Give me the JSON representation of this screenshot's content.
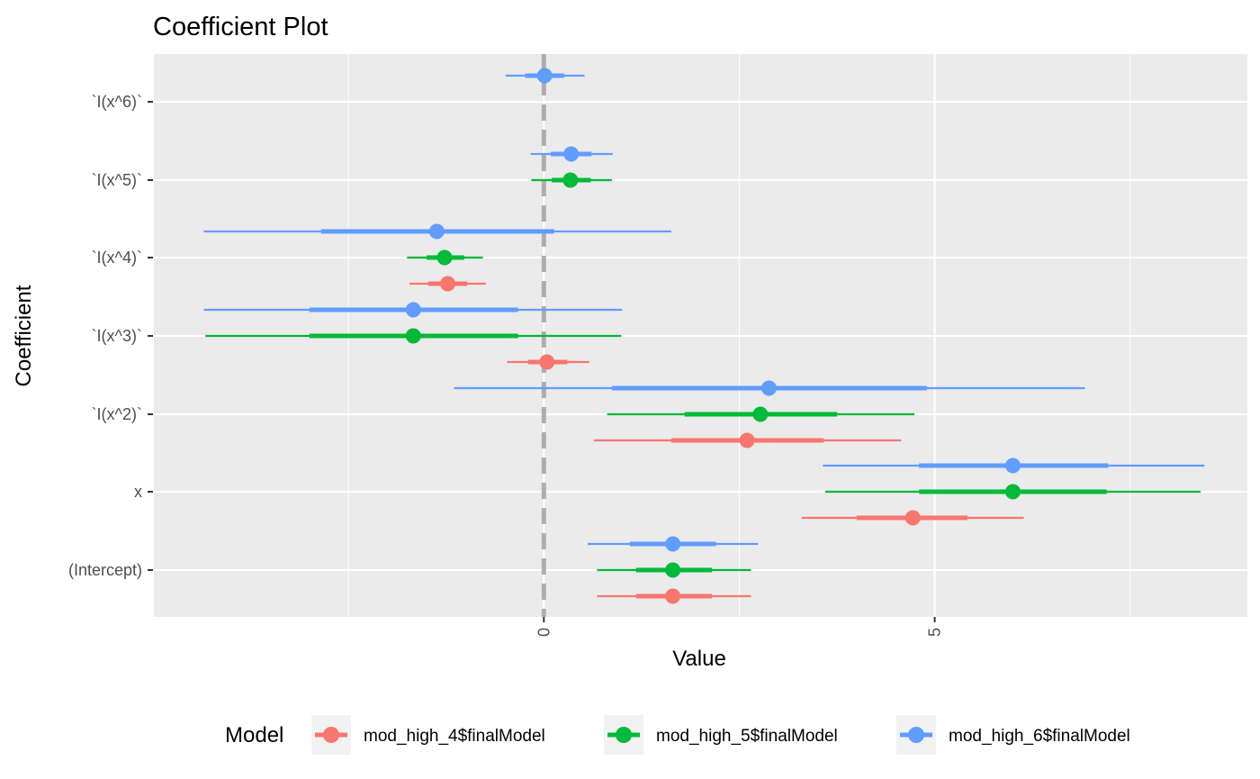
{
  "chart_data": {
    "type": "coefficient-plot",
    "title": "Coefficient Plot",
    "xlabel": "Value",
    "ylabel": "Coefficient",
    "xlim": [
      -5.0,
      9.0
    ],
    "x_ticks": [
      0,
      5
    ],
    "x_tick_labels": [
      "0",
      "5"
    ],
    "categories": [
      "(Intercept)",
      "x",
      "`I(x^2)`",
      "`I(x^3)`",
      "`I(x^4)`",
      "`I(x^5)`",
      "`I(x^6)`"
    ],
    "grid": true,
    "legend_position": "bottom",
    "legend_title": "Model",
    "reference_line": 0,
    "series": [
      {
        "name": "mod_high_4$finalModel",
        "color": "#F8766D",
        "points": [
          {
            "coef": "(Intercept)",
            "estimate": 1.65,
            "inner": [
              1.18,
              2.15
            ],
            "outer": [
              0.68,
              2.65
            ]
          },
          {
            "coef": "x",
            "estimate": 4.72,
            "inner": [
              4.0,
              5.42
            ],
            "outer": [
              3.3,
              6.14
            ]
          },
          {
            "coef": "`I(x^2)`",
            "estimate": 2.6,
            "inner": [
              1.63,
              3.58
            ],
            "outer": [
              0.64,
              4.57
            ]
          },
          {
            "coef": "`I(x^3)`",
            "estimate": 0.04,
            "inner": [
              -0.2,
              0.3
            ],
            "outer": [
              -0.47,
              0.58
            ]
          },
          {
            "coef": "`I(x^4)`",
            "estimate": -1.23,
            "inner": [
              -1.48,
              -0.98
            ],
            "outer": [
              -1.72,
              -0.74
            ]
          }
        ]
      },
      {
        "name": "mod_high_5$finalModel",
        "color": "#00BA38",
        "points": [
          {
            "coef": "(Intercept)",
            "estimate": 1.65,
            "inner": [
              1.18,
              2.15
            ],
            "outer": [
              0.68,
              2.65
            ]
          },
          {
            "coef": "x",
            "estimate": 6.0,
            "inner": [
              4.8,
              7.2
            ],
            "outer": [
              3.6,
              8.4
            ]
          },
          {
            "coef": "`I(x^2)`",
            "estimate": 2.77,
            "inner": [
              1.8,
              3.75
            ],
            "outer": [
              0.81,
              4.74
            ]
          },
          {
            "coef": "`I(x^3)`",
            "estimate": -1.67,
            "inner": [
              -3.0,
              -0.33
            ],
            "outer": [
              -4.33,
              0.99
            ]
          },
          {
            "coef": "`I(x^4)`",
            "estimate": -1.27,
            "inner": [
              -1.5,
              -1.02
            ],
            "outer": [
              -1.75,
              -0.78
            ]
          },
          {
            "coef": "`I(x^5)`",
            "estimate": 0.34,
            "inner": [
              0.1,
              0.6
            ],
            "outer": [
              -0.16,
              0.87
            ]
          }
        ]
      },
      {
        "name": "mod_high_6$finalModel",
        "color": "#619CFF",
        "points": [
          {
            "coef": "(Intercept)",
            "estimate": 1.65,
            "inner": [
              1.1,
              2.2
            ],
            "outer": [
              0.56,
              2.74
            ]
          },
          {
            "coef": "x",
            "estimate": 6.0,
            "inner": [
              4.8,
              7.22
            ],
            "outer": [
              3.57,
              8.45
            ]
          },
          {
            "coef": "`I(x^2)`",
            "estimate": 2.88,
            "inner": [
              0.87,
              4.9
            ],
            "outer": [
              -1.15,
              6.92
            ]
          },
          {
            "coef": "`I(x^3)`",
            "estimate": -1.67,
            "inner": [
              -3.0,
              -0.33
            ],
            "outer": [
              -4.35,
              1.0
            ]
          },
          {
            "coef": "`I(x^4)`",
            "estimate": -1.37,
            "inner": [
              -2.85,
              0.13
            ],
            "outer": [
              -4.35,
              1.63
            ]
          },
          {
            "coef": "`I(x^5)`",
            "estimate": 0.35,
            "inner": [
              0.09,
              0.61
            ],
            "outer": [
              -0.17,
              0.88
            ]
          },
          {
            "coef": "`I(x^6)`",
            "estimate": 0.01,
            "inner": [
              -0.24,
              0.26
            ],
            "outer": [
              -0.49,
              0.52
            ]
          }
        ]
      }
    ]
  }
}
